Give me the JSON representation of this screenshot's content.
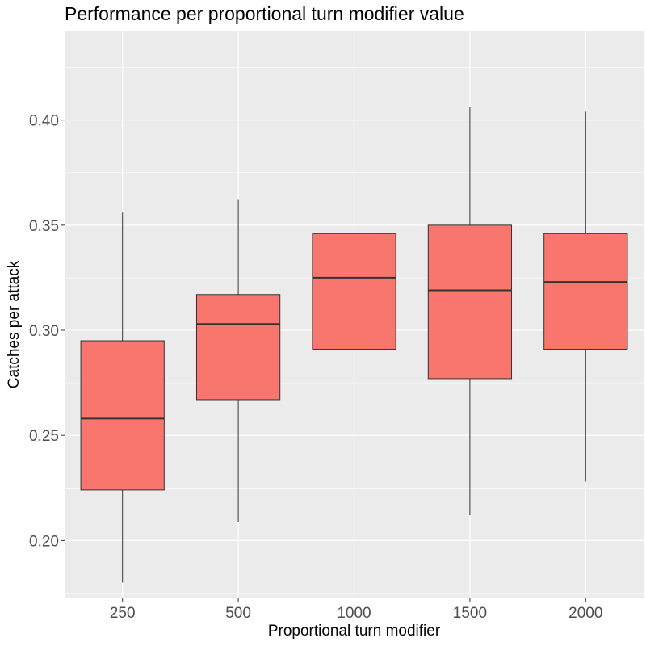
{
  "chart_data": {
    "type": "boxplot",
    "title": "Performance per proportional turn modifier value",
    "xlabel": "Proportional turn modifier",
    "ylabel": "Catches per attack",
    "categories": [
      "250",
      "500",
      "1000",
      "1500",
      "2000"
    ],
    "ylim": [
      0.1725,
      0.4425
    ],
    "yticks": [
      0.2,
      0.25,
      0.3,
      0.35,
      0.4
    ],
    "ytick_labels": [
      "0.20",
      "0.25",
      "0.30",
      "0.35",
      "0.40"
    ],
    "boxes": [
      {
        "category": "250",
        "whisker_low": 0.18,
        "q1": 0.224,
        "median": 0.258,
        "q3": 0.295,
        "whisker_high": 0.356
      },
      {
        "category": "500",
        "whisker_low": 0.209,
        "q1": 0.267,
        "median": 0.303,
        "q3": 0.317,
        "whisker_high": 0.362
      },
      {
        "category": "1000",
        "whisker_low": 0.237,
        "q1": 0.291,
        "median": 0.325,
        "q3": 0.346,
        "whisker_high": 0.429
      },
      {
        "category": "1500",
        "whisker_low": 0.212,
        "q1": 0.277,
        "median": 0.319,
        "q3": 0.35,
        "whisker_high": 0.406
      },
      {
        "category": "2000",
        "whisker_low": 0.228,
        "q1": 0.291,
        "median": 0.323,
        "q3": 0.346,
        "whisker_high": 0.404
      }
    ],
    "colors": {
      "panel_background": "#ebebeb",
      "grid_major": "#ffffff",
      "grid_minor": "#f5f5f5",
      "box_fill": "#f8766d",
      "box_outline": "#333333",
      "tick_text": "#4d4d4d"
    }
  }
}
